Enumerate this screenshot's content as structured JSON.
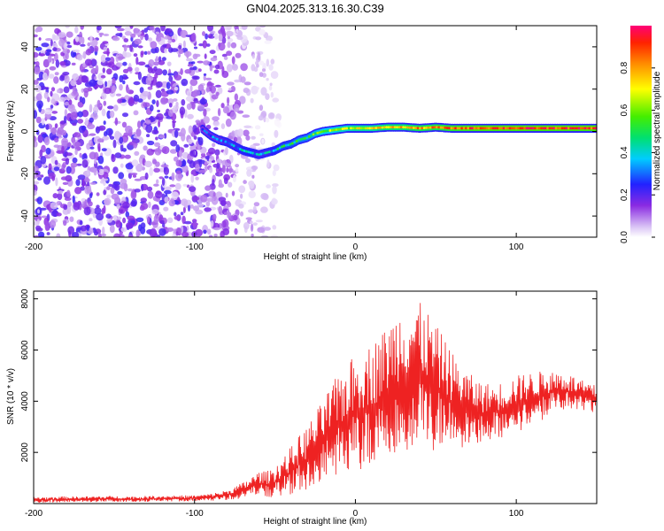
{
  "chart_data": [
    {
      "type": "heatmap",
      "title": "GN04.2025.313.16.30.C39",
      "xlabel": "Height of straight line (km)",
      "ylabel": "Frequency (Hz)",
      "xlim": [
        -200,
        150
      ],
      "ylim": [
        -50,
        50
      ],
      "xticks": [
        -200,
        -100,
        0,
        100
      ],
      "yticks": [
        -40,
        -20,
        0,
        20,
        40
      ],
      "colorbar": {
        "label": "Normalized spectral amplitude",
        "range": [
          0,
          1
        ],
        "ticks": [
          0.0,
          0.2,
          0.4,
          0.6,
          0.8
        ],
        "tick_labels": [
          "0.0",
          "0.2",
          "0.4",
          "0.6",
          "0.8"
        ]
      },
      "noise_region_x": [
        -200,
        -55
      ],
      "signal_track": {
        "x": [
          -95,
          -90,
          -85,
          -80,
          -75,
          -70,
          -65,
          -60,
          -55,
          -50,
          -45,
          -40,
          -35,
          -30,
          -25,
          -20,
          -15,
          -10,
          -5,
          0,
          10,
          20,
          30,
          40,
          50,
          60,
          80,
          100,
          120,
          150
        ],
        "y": [
          1,
          -2,
          -4,
          -5,
          -7,
          -9,
          -10,
          -11,
          -10,
          -9,
          -7,
          -6,
          -4,
          -3,
          -1,
          0,
          0.5,
          1,
          1.5,
          1.5,
          1.5,
          2,
          2,
          1.5,
          2,
          1.5,
          1.5,
          1.5,
          1.5,
          1.5
        ],
        "amplitude": [
          0.25,
          0.3,
          0.3,
          0.35,
          0.35,
          0.4,
          0.4,
          0.35,
          0.35,
          0.4,
          0.45,
          0.45,
          0.5,
          0.5,
          0.55,
          0.6,
          0.6,
          0.65,
          0.65,
          0.7,
          0.7,
          0.75,
          0.75,
          0.8,
          0.8,
          0.85,
          0.9,
          0.9,
          0.9,
          0.9
        ]
      }
    },
    {
      "type": "line",
      "xlabel": "Height of straight line (km)",
      "ylabel": "SNR (10 * v/v)",
      "xlim": [
        -200,
        150
      ],
      "ylim": [
        0,
        8300
      ],
      "xticks": [
        -200,
        -100,
        0,
        100
      ],
      "yticks": [
        2000,
        4000,
        6000,
        8000
      ],
      "series": [
        {
          "name": "SNR",
          "color": "#ee2222",
          "x": [
            -200,
            -190,
            -180,
            -170,
            -160,
            -150,
            -140,
            -130,
            -120,
            -110,
            -100,
            -90,
            -80,
            -70,
            -65,
            -60,
            -55,
            -50,
            -45,
            -40,
            -35,
            -30,
            -25,
            -20,
            -15,
            -10,
            -5,
            0,
            5,
            10,
            15,
            20,
            25,
            30,
            35,
            40,
            45,
            50,
            55,
            60,
            65,
            70,
            75,
            80,
            85,
            90,
            95,
            100,
            105,
            110,
            115,
            120,
            125,
            130,
            135,
            140,
            145,
            150
          ],
          "y": [
            150,
            150,
            170,
            160,
            180,
            180,
            170,
            180,
            200,
            200,
            210,
            250,
            330,
            500,
            650,
            800,
            750,
            850,
            1050,
            1250,
            1500,
            1750,
            2100,
            2400,
            2700,
            3000,
            3300,
            3500,
            3700,
            3800,
            4000,
            4300,
            4700,
            4900,
            5000,
            5000,
            4800,
            4500,
            4300,
            4000,
            3800,
            3700,
            3600,
            3550,
            3600,
            3650,
            3750,
            3900,
            4000,
            4100,
            4200,
            4300,
            4350,
            4400,
            4300,
            4200,
            4100,
            4050
          ],
          "noise_amplitude": [
            90,
            90,
            90,
            90,
            90,
            90,
            90,
            90,
            90,
            90,
            90,
            110,
            150,
            250,
            300,
            350,
            400,
            500,
            600,
            750,
            900,
            1000,
            1100,
            1300,
            1500,
            1600,
            1700,
            1800,
            1850,
            1900,
            2000,
            2100,
            2200,
            2300,
            2300,
            2200,
            2100,
            1900,
            1700,
            1500,
            1300,
            1100,
            1000,
            900,
            850,
            850,
            850,
            850,
            850,
            800,
            750,
            700,
            650,
            600,
            550,
            500,
            450,
            450
          ]
        }
      ]
    }
  ]
}
